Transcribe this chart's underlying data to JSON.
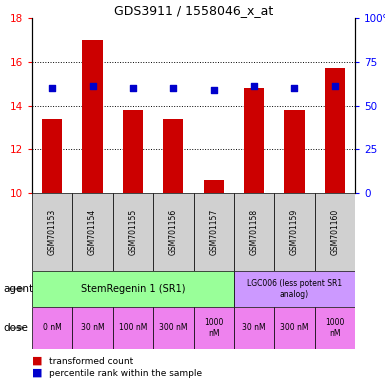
{
  "title": "GDS3911 / 1558046_x_at",
  "samples": [
    "GSM701153",
    "GSM701154",
    "GSM701155",
    "GSM701156",
    "GSM701157",
    "GSM701158",
    "GSM701159",
    "GSM701160"
  ],
  "bar_values": [
    13.4,
    17.0,
    13.8,
    13.4,
    10.6,
    14.8,
    13.8,
    15.7
  ],
  "percentile_values": [
    14.8,
    14.9,
    14.8,
    14.8,
    14.7,
    14.9,
    14.8,
    14.9
  ],
  "ylim_left": [
    10,
    18
  ],
  "ylim_right": [
    0,
    100
  ],
  "yticks_left": [
    10,
    12,
    14,
    16,
    18
  ],
  "yticks_right": [
    0,
    25,
    50,
    75,
    100
  ],
  "yticklabels_right": [
    "0",
    "25",
    "50",
    "75",
    "100%"
  ],
  "bar_color": "#cc0000",
  "percentile_color": "#0000cc",
  "agent_sr1": "StemRegenin 1 (SR1)",
  "agent_lgc": "LGC006 (less potent SR1\nanalog)",
  "agent_sr1_color": "#99ff99",
  "agent_lgc_color": "#cc99ff",
  "dose_labels": [
    "0 nM",
    "30 nM",
    "100 nM",
    "300 nM",
    "1000\nnM",
    "30 nM",
    "300 nM",
    "1000\nnM"
  ],
  "dose_color": "#ff66ff",
  "dose_bg_color": "#ee82ee",
  "sample_bg_color": "#d0d0d0",
  "legend_bar_label": "transformed count",
  "legend_pct_label": "percentile rank within the sample",
  "sr1_sample_count": 5,
  "lgc_sample_count": 3,
  "grid_yticks": [
    12,
    14,
    16
  ],
  "arrow_color": "#888888"
}
